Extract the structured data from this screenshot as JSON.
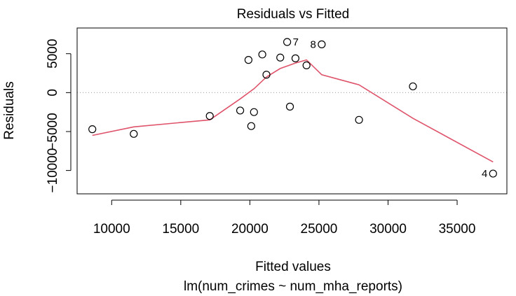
{
  "chart_data": {
    "type": "scatter",
    "title": "Residuals vs Fitted",
    "xlabel": "Fitted values",
    "subtitle": "lm(num_crimes ~ num_mha_reports)",
    "ylabel": "Residuals",
    "xlim": [
      7500,
      38600
    ],
    "ylim": [
      -13000,
      8300
    ],
    "x_ticks": [
      10000,
      15000,
      20000,
      25000,
      30000,
      35000
    ],
    "y_ticks": [
      -10000,
      -5000,
      0,
      5000
    ],
    "y_tick_labels": [
      "−10000",
      "−5000",
      "0",
      "5000"
    ],
    "zero_line": true,
    "points": [
      {
        "x": 8600,
        "y": -4700
      },
      {
        "x": 11600,
        "y": -5300
      },
      {
        "x": 17100,
        "y": -3000
      },
      {
        "x": 19300,
        "y": -2300
      },
      {
        "x": 19900,
        "y": 4200
      },
      {
        "x": 20100,
        "y": -4300
      },
      {
        "x": 20300,
        "y": -2500
      },
      {
        "x": 20900,
        "y": 4900
      },
      {
        "x": 21200,
        "y": 2300
      },
      {
        "x": 22200,
        "y": 4500
      },
      {
        "x": 22700,
        "y": 6500,
        "label": "7"
      },
      {
        "x": 22900,
        "y": -1800
      },
      {
        "x": 23300,
        "y": 4400
      },
      {
        "x": 24100,
        "y": 3500
      },
      {
        "x": 25200,
        "y": 6200,
        "label": "8"
      },
      {
        "x": 27900,
        "y": -3500
      },
      {
        "x": 31800,
        "y": 800
      },
      {
        "x": 37600,
        "y": -10400,
        "label": "4"
      }
    ],
    "smooth_line": {
      "color": "#DF536B",
      "x": [
        8600,
        11600,
        17100,
        19300,
        20300,
        21200,
        22200,
        23300,
        24100,
        25200,
        27900,
        31800,
        37600
      ],
      "y": [
        -5500,
        -4400,
        -3500,
        -800,
        500,
        2000,
        3100,
        3800,
        4200,
        2300,
        1000,
        -3300,
        -8900
      ]
    }
  }
}
